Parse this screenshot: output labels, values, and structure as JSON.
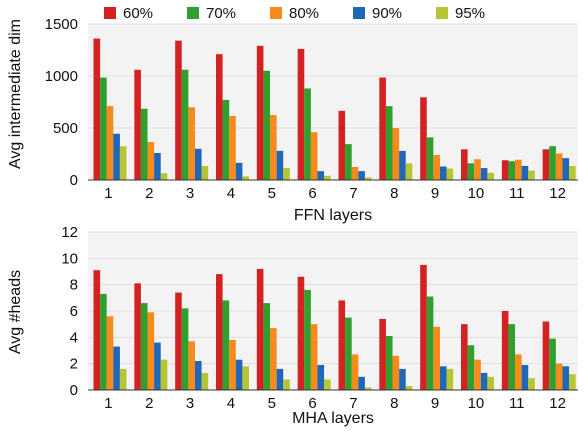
{
  "colors": {
    "series": [
      "#d42222",
      "#2ea02e",
      "#f78a1d",
      "#1f67b8",
      "#b8c532"
    ],
    "plot_bg": "#f3f3f3",
    "grid": "#e0e0e0"
  },
  "legend": {
    "placement": "top",
    "entries": [
      "60%",
      "70%",
      "80%",
      "90%",
      "95%"
    ]
  },
  "chart_data": [
    {
      "type": "bar",
      "title": "",
      "xlabel": "FFN layers",
      "ylabel": "Avg intermediate dim",
      "categories": [
        "1",
        "2",
        "3",
        "4",
        "5",
        "6",
        "7",
        "8",
        "9",
        "10",
        "11",
        "12"
      ],
      "ylim": [
        0,
        1500
      ],
      "yticks": [
        0,
        500,
        1000,
        1500
      ],
      "grid": true,
      "series": [
        {
          "name": "60%",
          "values": [
            1360,
            1060,
            1340,
            1210,
            1290,
            1260,
            665,
            985,
            795,
            295,
            190,
            295
          ]
        },
        {
          "name": "70%",
          "values": [
            985,
            685,
            1060,
            770,
            1050,
            880,
            345,
            710,
            410,
            160,
            180,
            325
          ]
        },
        {
          "name": "80%",
          "values": [
            710,
            365,
            700,
            615,
            625,
            460,
            125,
            500,
            240,
            200,
            195,
            255
          ]
        },
        {
          "name": "90%",
          "values": [
            445,
            260,
            300,
            165,
            280,
            85,
            85,
            280,
            130,
            115,
            135,
            210
          ]
        },
        {
          "name": "95%",
          "values": [
            325,
            65,
            135,
            35,
            115,
            40,
            25,
            160,
            110,
            70,
            90,
            135
          ]
        }
      ]
    },
    {
      "type": "bar",
      "title": "",
      "xlabel": "MHA layers",
      "ylabel": "Avg #heads",
      "categories": [
        "1",
        "2",
        "3",
        "4",
        "5",
        "6",
        "7",
        "8",
        "9",
        "10",
        "11",
        "12"
      ],
      "ylim": [
        0,
        12
      ],
      "yticks": [
        0,
        2,
        4,
        6,
        8,
        10,
        12
      ],
      "grid": true,
      "series": [
        {
          "name": "60%",
          "values": [
            9.1,
            8.1,
            7.4,
            8.8,
            9.2,
            8.6,
            6.8,
            5.4,
            9.5,
            5.0,
            6.0,
            5.2
          ]
        },
        {
          "name": "70%",
          "values": [
            7.3,
            6.6,
            6.2,
            6.8,
            6.6,
            7.6,
            5.5,
            4.1,
            7.1,
            3.4,
            5.0,
            3.9
          ]
        },
        {
          "name": "80%",
          "values": [
            5.6,
            5.9,
            3.7,
            3.8,
            4.7,
            5.0,
            2.7,
            2.6,
            4.8,
            2.3,
            2.7,
            2.0
          ]
        },
        {
          "name": "90%",
          "values": [
            3.3,
            3.6,
            2.2,
            2.3,
            1.6,
            1.9,
            1.0,
            1.6,
            1.8,
            1.3,
            1.9,
            1.8
          ]
        },
        {
          "name": "95%",
          "values": [
            1.6,
            2.3,
            1.3,
            1.8,
            0.8,
            0.8,
            0.2,
            0.3,
            1.6,
            1.0,
            0.9,
            1.2
          ]
        }
      ]
    }
  ]
}
